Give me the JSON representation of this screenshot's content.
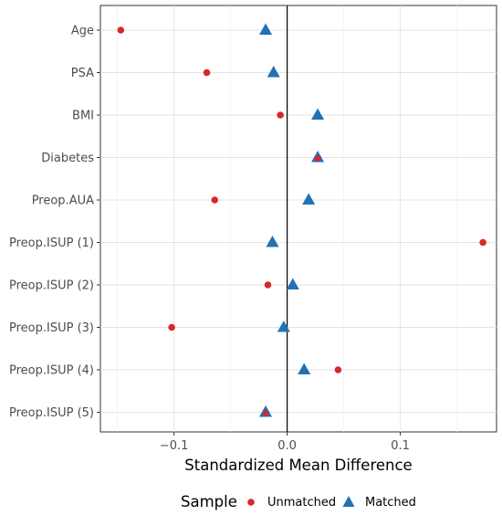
{
  "chart_data": {
    "type": "scatter",
    "xlabel": "Standardized Mean Difference",
    "xlim": [
      -0.165,
      0.185
    ],
    "x_ticks": [
      -0.1,
      0.0,
      0.1
    ],
    "x_tick_labels": [
      "−0.1",
      "0.0",
      "0.1"
    ],
    "reference_line": 0,
    "grid": true,
    "legend_position": "bottom",
    "categories": [
      "Age",
      "PSA",
      "BMI",
      "Diabetes",
      "Preop.AUA",
      "Preop.ISUP (1)",
      "Preop.ISUP (2)",
      "Preop.ISUP (3)",
      "Preop.ISUP (4)",
      "Preop.ISUP (5)"
    ],
    "series": [
      {
        "name": "Unmatched",
        "marker": "circle",
        "color": "#d7282a",
        "values": [
          -0.147,
          -0.071,
          -0.006,
          0.027,
          -0.064,
          0.173,
          -0.017,
          -0.102,
          0.045,
          -0.019
        ]
      },
      {
        "name": "Matched",
        "marker": "triangle",
        "color": "#2171b5",
        "values": [
          -0.019,
          -0.012,
          0.027,
          0.027,
          0.019,
          -0.013,
          0.005,
          -0.003,
          0.015,
          -0.019
        ]
      }
    ],
    "legend_title": "Sample"
  }
}
